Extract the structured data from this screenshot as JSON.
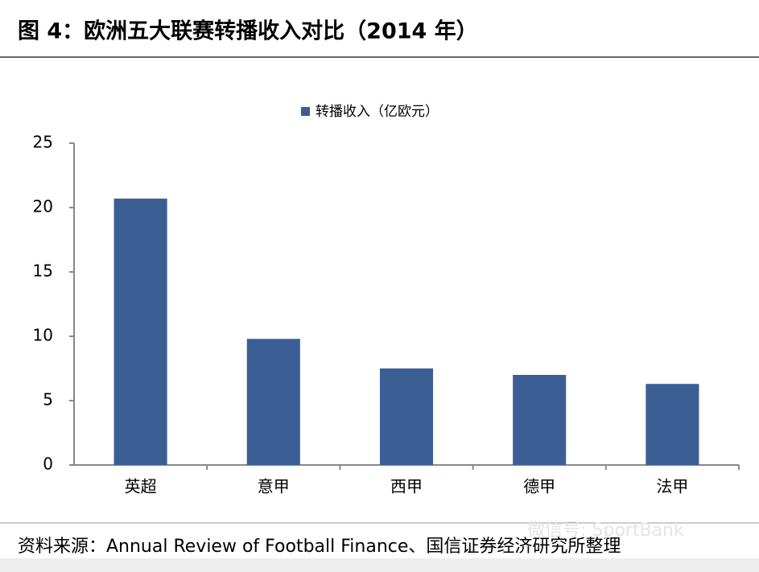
{
  "chart_data": {
    "type": "bar",
    "title": "图 4：欧洲五大联赛转播收入对比（2014 年）",
    "legend_label": "转播收入（亿欧元）",
    "categories": [
      "英超",
      "意甲",
      "西甲",
      "德甲",
      "法甲"
    ],
    "values": [
      20.7,
      9.8,
      7.5,
      7.0,
      6.3
    ],
    "color": "#3b5f95",
    "ylim": [
      0,
      25
    ],
    "yticks": [
      0,
      5,
      10,
      15,
      20,
      25
    ],
    "grid": false,
    "source": "资料来源：Annual Review of Football Finance、国信证券经济研究所整理",
    "watermark": "微信号: SportBank"
  }
}
